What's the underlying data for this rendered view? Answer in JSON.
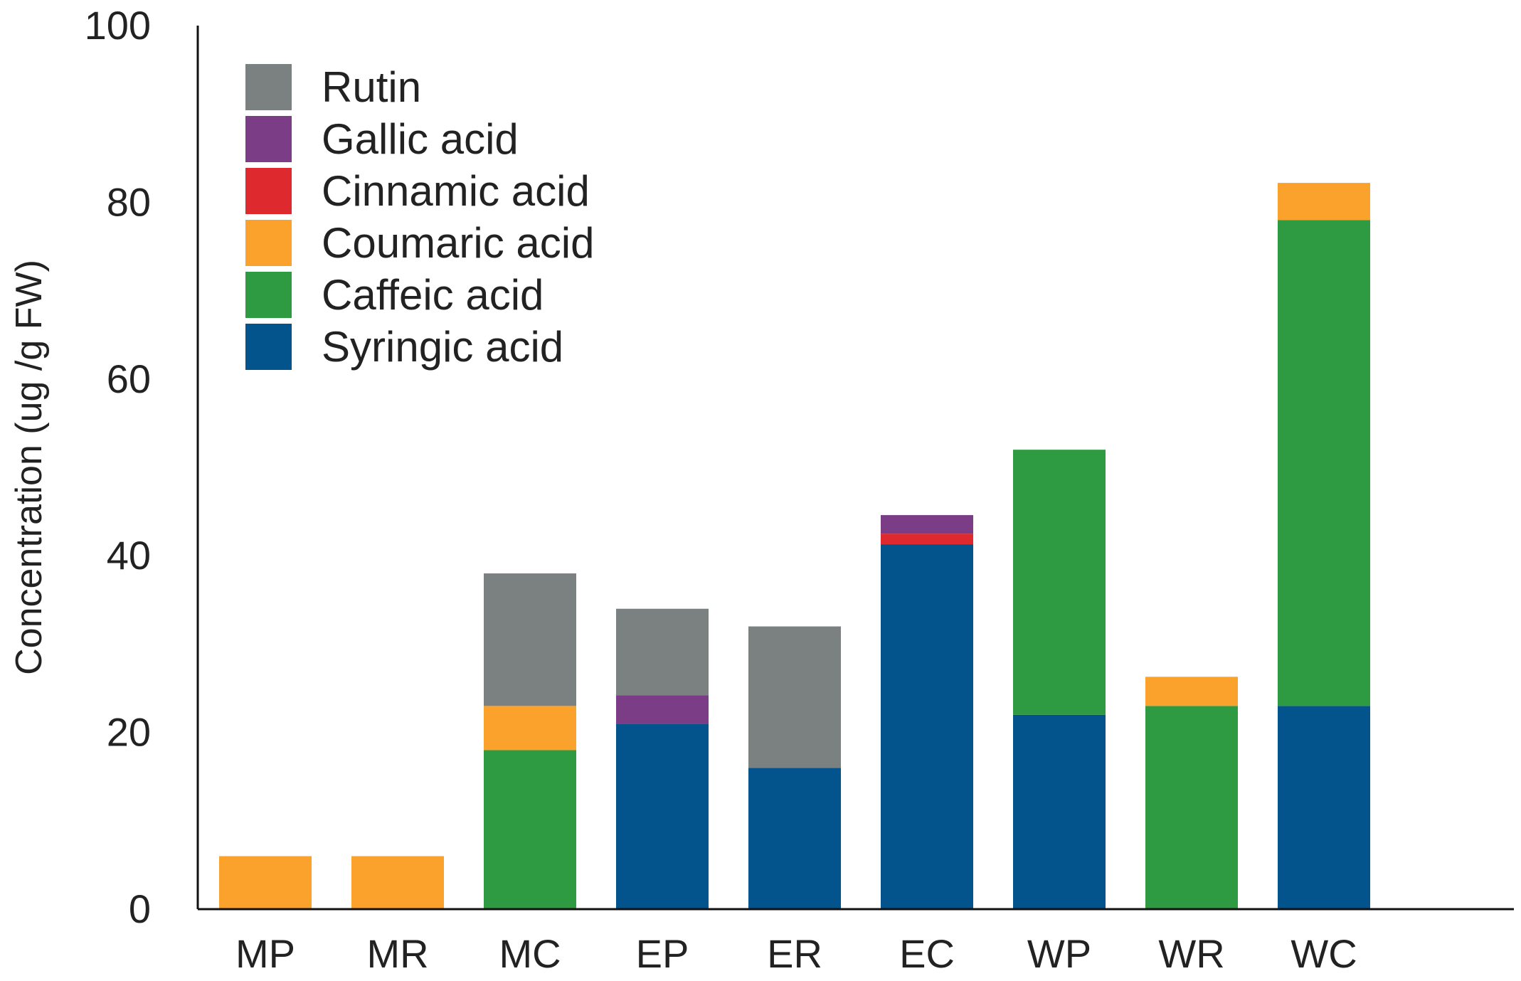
{
  "chart_data": {
    "type": "bar",
    "stacked": true,
    "title": "",
    "xlabel": "",
    "ylabel": "Concentration (ug /g FW)",
    "ylim": [
      0,
      100
    ],
    "yticks": [
      0,
      20,
      40,
      60,
      80,
      100
    ],
    "grid": false,
    "legend": "top-left",
    "categories": [
      "MP",
      "MR",
      "MC",
      "EP",
      "ER",
      "EC",
      "WP",
      "WR",
      "WC"
    ],
    "series": [
      {
        "name": "Syringic acid",
        "color": "#03538c",
        "values": [
          0,
          0,
          0,
          21,
          16,
          41.3,
          22,
          0,
          23
        ]
      },
      {
        "name": "Caffeic acid",
        "color": "#2e9a42",
        "values": [
          0,
          0,
          18,
          0,
          0,
          0,
          30,
          23,
          55
        ]
      },
      {
        "name": "Coumaric acid",
        "color": "#fba22d",
        "values": [
          6,
          6,
          5,
          0,
          0,
          0,
          0,
          3.3,
          4.2
        ]
      },
      {
        "name": "Cinnamic acid",
        "color": "#de2a2f",
        "values": [
          0,
          0,
          0,
          0,
          0,
          1.2,
          0,
          0,
          0
        ]
      },
      {
        "name": "Gallic acid",
        "color": "#7a3d86",
        "values": [
          0,
          0,
          0,
          3.2,
          0,
          2.1,
          0,
          0,
          0
        ]
      },
      {
        "name": "Rutin",
        "color": "#7b8081",
        "values": [
          0,
          0,
          15,
          9.8,
          16,
          0,
          0,
          0,
          0
        ]
      }
    ],
    "legend_order": [
      "Rutin",
      "Gallic acid",
      "Cinnamic acid",
      "Coumaric acid",
      "Caffeic acid",
      "Syringic acid"
    ]
  }
}
